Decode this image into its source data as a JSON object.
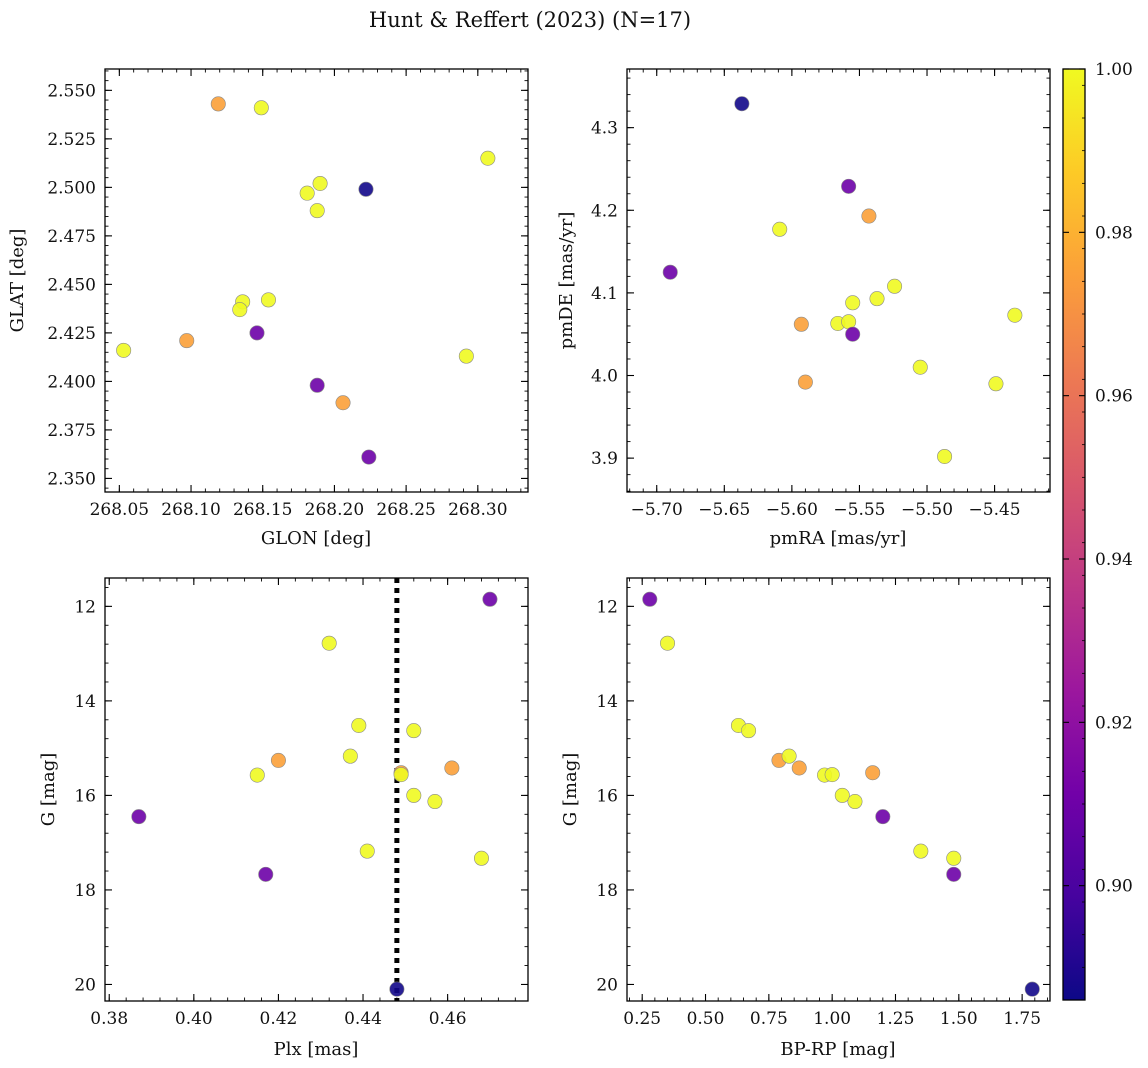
{
  "figure_title": "Hunt & Reffert (2023) (N=17)",
  "colorbar": {
    "ticks": [
      "0.90",
      "0.92",
      "0.94",
      "0.96",
      "0.98",
      "1.00"
    ],
    "tick_values": [
      0.9,
      0.92,
      0.94,
      0.96,
      0.98,
      1.0
    ],
    "range": [
      0.886,
      1.0
    ],
    "colormap": [
      "#0d0887",
      "#46039f",
      "#7201a8",
      "#9c179e",
      "#bd3786",
      "#d8576b",
      "#ed7953",
      "#fb9f3a",
      "#fdca26",
      "#f0f921"
    ]
  },
  "reference_line": {
    "panel": "c",
    "x": 0.448,
    "style": "dotted",
    "color": "#000000"
  },
  "chart_data": [
    {
      "id": "a",
      "type": "scatter",
      "xlabel": "GLON [deg]",
      "ylabel": "GLAT [deg]",
      "xlim": [
        268.04,
        268.335
      ],
      "ylim": [
        2.343,
        2.561
      ],
      "xticks": [
        268.05,
        268.1,
        268.15,
        268.2,
        268.25,
        268.3
      ],
      "xtick_labels": [
        "268.05",
        "268.10",
        "268.15",
        "268.20",
        "268.25",
        "268.30"
      ],
      "yticks": [
        2.35,
        2.375,
        2.4,
        2.425,
        2.45,
        2.475,
        2.5,
        2.525,
        2.55
      ],
      "ytick_labels": [
        "2.350",
        "2.375",
        "2.400",
        "2.425",
        "2.450",
        "2.475",
        "2.500",
        "2.525",
        "2.550"
      ],
      "points": [
        {
          "x": 268.119,
          "y": 2.543,
          "c": 0.975
        },
        {
          "x": 268.149,
          "y": 2.541,
          "c": 1.0
        },
        {
          "x": 268.307,
          "y": 2.515,
          "c": 1.0
        },
        {
          "x": 268.19,
          "y": 2.502,
          "c": 1.0
        },
        {
          "x": 268.222,
          "y": 2.499,
          "c": 0.887
        },
        {
          "x": 268.181,
          "y": 2.497,
          "c": 1.0
        },
        {
          "x": 268.188,
          "y": 2.488,
          "c": 1.0
        },
        {
          "x": 268.154,
          "y": 2.442,
          "c": 1.0
        },
        {
          "x": 268.136,
          "y": 2.441,
          "c": 1.0
        },
        {
          "x": 268.134,
          "y": 2.437,
          "c": 1.0
        },
        {
          "x": 268.146,
          "y": 2.425,
          "c": 0.91
        },
        {
          "x": 268.097,
          "y": 2.421,
          "c": 0.975
        },
        {
          "x": 268.053,
          "y": 2.416,
          "c": 1.0
        },
        {
          "x": 268.292,
          "y": 2.413,
          "c": 1.0
        },
        {
          "x": 268.188,
          "y": 2.398,
          "c": 0.91
        },
        {
          "x": 268.206,
          "y": 2.389,
          "c": 0.975
        },
        {
          "x": 268.224,
          "y": 2.361,
          "c": 0.91
        }
      ]
    },
    {
      "id": "b",
      "type": "scatter",
      "xlabel": "pmRA [mas/yr]",
      "ylabel": "pmDE [mas/yr]",
      "xlim": [
        -5.722,
        -5.409
      ],
      "ylim": [
        3.859,
        4.371
      ],
      "xticks": [
        -5.7,
        -5.65,
        -5.6,
        -5.55,
        -5.5,
        -5.45
      ],
      "xtick_labels": [
        "−5.70",
        "−5.65",
        "−5.60",
        "−5.55",
        "−5.50",
        "−5.45"
      ],
      "yticks": [
        3.9,
        4.0,
        4.1,
        4.2,
        4.3
      ],
      "ytick_labels": [
        "3.9",
        "4.0",
        "4.1",
        "4.2",
        "4.3"
      ],
      "points": [
        {
          "x": -5.637,
          "y": 4.329,
          "c": 0.887
        },
        {
          "x": -5.558,
          "y": 4.229,
          "c": 0.91
        },
        {
          "x": -5.543,
          "y": 4.193,
          "c": 0.975
        },
        {
          "x": -5.609,
          "y": 4.177,
          "c": 1.0
        },
        {
          "x": -5.69,
          "y": 4.125,
          "c": 0.91
        },
        {
          "x": -5.524,
          "y": 4.108,
          "c": 1.0
        },
        {
          "x": -5.537,
          "y": 4.093,
          "c": 1.0
        },
        {
          "x": -5.555,
          "y": 4.088,
          "c": 1.0
        },
        {
          "x": -5.435,
          "y": 4.073,
          "c": 1.0
        },
        {
          "x": -5.566,
          "y": 4.063,
          "c": 1.0
        },
        {
          "x": -5.558,
          "y": 4.065,
          "c": 1.0
        },
        {
          "x": -5.593,
          "y": 4.062,
          "c": 0.975
        },
        {
          "x": -5.555,
          "y": 4.05,
          "c": 0.91
        },
        {
          "x": -5.505,
          "y": 4.01,
          "c": 1.0
        },
        {
          "x": -5.59,
          "y": 3.992,
          "c": 0.975
        },
        {
          "x": -5.449,
          "y": 3.99,
          "c": 1.0
        },
        {
          "x": -5.487,
          "y": 3.902,
          "c": 1.0
        }
      ]
    },
    {
      "id": "c",
      "type": "scatter",
      "xlabel": "Plx [mas]",
      "ylabel": "G [mag]",
      "xlim": [
        0.379,
        0.479
      ],
      "ylim": [
        20.35,
        11.4
      ],
      "y_inverted": true,
      "xticks": [
        0.38,
        0.4,
        0.42,
        0.44,
        0.46
      ],
      "xtick_labels": [
        "0.38",
        "0.40",
        "0.42",
        "0.44",
        "0.46"
      ],
      "yticks": [
        12,
        14,
        16,
        18,
        20
      ],
      "ytick_labels": [
        "12",
        "14",
        "16",
        "18",
        "20"
      ],
      "points": [
        {
          "x": 0.47,
          "y": 11.85,
          "c": 0.91
        },
        {
          "x": 0.432,
          "y": 12.78,
          "c": 1.0
        },
        {
          "x": 0.439,
          "y": 14.52,
          "c": 1.0
        },
        {
          "x": 0.452,
          "y": 14.63,
          "c": 1.0
        },
        {
          "x": 0.437,
          "y": 15.17,
          "c": 1.0
        },
        {
          "x": 0.42,
          "y": 15.26,
          "c": 0.975
        },
        {
          "x": 0.461,
          "y": 15.42,
          "c": 0.975
        },
        {
          "x": 0.449,
          "y": 15.52,
          "c": 0.975
        },
        {
          "x": 0.415,
          "y": 15.57,
          "c": 1.0
        },
        {
          "x": 0.449,
          "y": 15.56,
          "c": 1.0
        },
        {
          "x": 0.452,
          "y": 16.0,
          "c": 1.0
        },
        {
          "x": 0.457,
          "y": 16.13,
          "c": 1.0
        },
        {
          "x": 0.387,
          "y": 16.45,
          "c": 0.91
        },
        {
          "x": 0.441,
          "y": 17.18,
          "c": 1.0
        },
        {
          "x": 0.468,
          "y": 17.33,
          "c": 1.0
        },
        {
          "x": 0.417,
          "y": 17.67,
          "c": 0.91
        },
        {
          "x": 0.448,
          "y": 20.1,
          "c": 0.887
        }
      ]
    },
    {
      "id": "d",
      "type": "scatter",
      "xlabel": "BP-RP [mag]",
      "ylabel": "G [mag]",
      "xlim": [
        0.19,
        1.86
      ],
      "ylim": [
        20.35,
        11.4
      ],
      "y_inverted": true,
      "xticks": [
        0.25,
        0.5,
        0.75,
        1.0,
        1.25,
        1.5,
        1.75
      ],
      "xtick_labels": [
        "0.25",
        "0.50",
        "0.75",
        "1.00",
        "1.25",
        "1.50",
        "1.75"
      ],
      "yticks": [
        12,
        14,
        16,
        18,
        20
      ],
      "ytick_labels": [
        "12",
        "14",
        "16",
        "18",
        "20"
      ],
      "points": [
        {
          "x": 0.28,
          "y": 11.85,
          "c": 0.91
        },
        {
          "x": 0.35,
          "y": 12.78,
          "c": 1.0
        },
        {
          "x": 0.63,
          "y": 14.52,
          "c": 1.0
        },
        {
          "x": 0.67,
          "y": 14.63,
          "c": 1.0
        },
        {
          "x": 0.79,
          "y": 15.26,
          "c": 0.975
        },
        {
          "x": 0.83,
          "y": 15.17,
          "c": 1.0
        },
        {
          "x": 0.87,
          "y": 15.42,
          "c": 0.975
        },
        {
          "x": 0.97,
          "y": 15.57,
          "c": 1.0
        },
        {
          "x": 1.0,
          "y": 15.56,
          "c": 1.0
        },
        {
          "x": 1.16,
          "y": 15.52,
          "c": 0.975
        },
        {
          "x": 1.04,
          "y": 16.0,
          "c": 1.0
        },
        {
          "x": 1.09,
          "y": 16.13,
          "c": 1.0
        },
        {
          "x": 1.2,
          "y": 16.45,
          "c": 0.91
        },
        {
          "x": 1.35,
          "y": 17.18,
          "c": 1.0
        },
        {
          "x": 1.48,
          "y": 17.33,
          "c": 1.0
        },
        {
          "x": 1.48,
          "y": 17.67,
          "c": 0.91
        },
        {
          "x": 1.79,
          "y": 20.1,
          "c": 0.887
        }
      ]
    }
  ]
}
